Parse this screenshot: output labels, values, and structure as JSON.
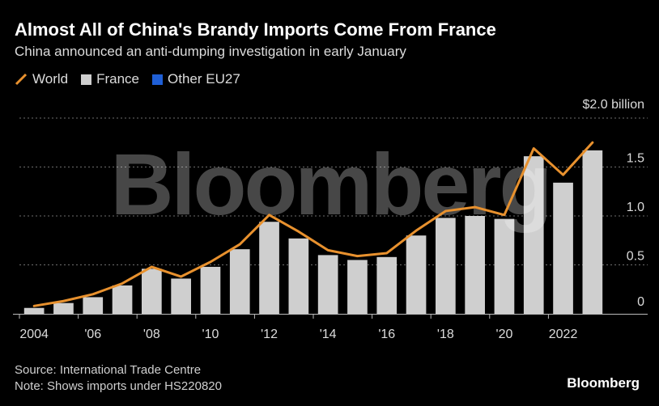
{
  "header": {
    "title": "Almost All of China's Brandy Imports Come From France",
    "subtitle": "China announced an anti-dumping investigation in early January"
  },
  "legend": {
    "world": "World",
    "france": "France",
    "other": "Other EU27"
  },
  "colors": {
    "world": "#e8912e",
    "france": "#cfcfcf",
    "other": "#1f5fd6",
    "grid": "#6e6e6e",
    "axis": "#bbbbbb",
    "watermark": "#ffffff"
  },
  "footer": {
    "source": "Source: International Trade Centre",
    "note": "Note: Shows imports under HS220820",
    "brand": "Bloomberg"
  },
  "chart_data": {
    "type": "bar",
    "watermark": "Bloomberg",
    "categories": [
      "2004",
      "2005",
      "2006",
      "2007",
      "2008",
      "2009",
      "2010",
      "2011",
      "2012",
      "2013",
      "2014",
      "2015",
      "2016",
      "2017",
      "2018",
      "2019",
      "2020",
      "2021",
      "2022",
      "2023"
    ],
    "x_tick_labels": [
      "2004",
      "",
      "'06",
      "",
      "'08",
      "",
      "'10",
      "",
      "'12",
      "",
      "'14",
      "",
      "'16",
      "",
      "'18",
      "",
      "'20",
      "",
      "2022",
      ""
    ],
    "series": [
      {
        "name": "France",
        "type": "bar",
        "values": [
          0.06,
          0.11,
          0.17,
          0.29,
          0.46,
          0.36,
          0.48,
          0.66,
          0.94,
          0.77,
          0.6,
          0.55,
          0.58,
          0.8,
          0.98,
          1.0,
          0.97,
          1.61,
          1.34,
          1.67
        ]
      },
      {
        "name": "Other EU27",
        "type": "bar",
        "values": [
          0,
          0,
          0,
          0,
          0,
          0,
          0,
          0,
          0,
          0,
          0,
          0,
          0,
          0,
          0,
          0,
          0,
          0,
          0,
          0
        ]
      },
      {
        "name": "World",
        "type": "line",
        "values": [
          0.08,
          0.13,
          0.2,
          0.31,
          0.48,
          0.38,
          0.53,
          0.71,
          1.01,
          0.84,
          0.65,
          0.59,
          0.62,
          0.85,
          1.05,
          1.09,
          1.01,
          1.69,
          1.42,
          1.75
        ]
      }
    ],
    "yticks": [
      0,
      0.5,
      1.0,
      1.5,
      2.0
    ],
    "ytick_labels": [
      "0",
      "0.5",
      "1.0",
      "1.5",
      "$2.0 billion"
    ],
    "ylim": [
      0,
      2.0
    ],
    "grid": true
  }
}
